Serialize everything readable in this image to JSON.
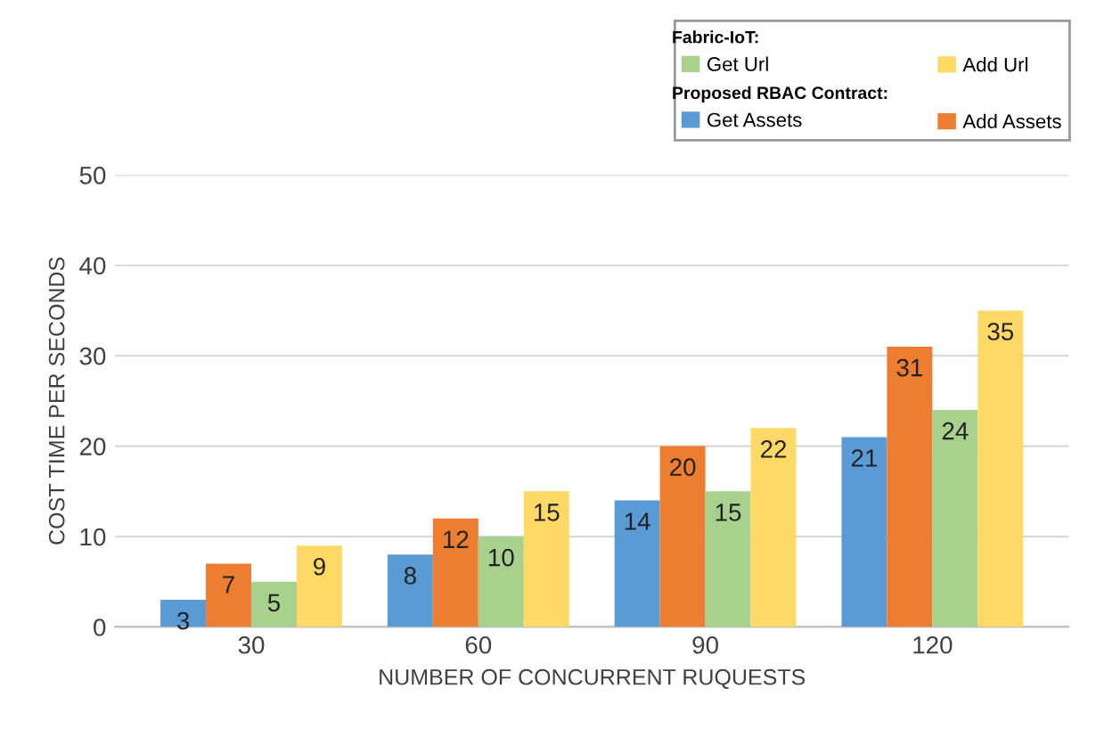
{
  "chart_data": {
    "type": "bar",
    "xlabel": "NUMBER OF CONCURRENT RUQUESTS",
    "ylabel": "COST TIME PER SECONDS",
    "categories": [
      "30",
      "60",
      "90",
      "120"
    ],
    "series": [
      {
        "name": "Get Assets",
        "color": "#5b9bd5",
        "values": [
          3,
          8,
          14,
          21
        ]
      },
      {
        "name": "Add Assets",
        "color": "#ed7d31",
        "values": [
          7,
          12,
          20,
          31
        ]
      },
      {
        "name": "Get Url",
        "color": "#a9d18e",
        "values": [
          5,
          10,
          15,
          24
        ]
      },
      {
        "name": "Add Url",
        "color": "#ffd966",
        "values": [
          9,
          15,
          22,
          35
        ]
      }
    ],
    "annotations": [
      "Fabric-IoT:",
      "Proposed RBAC Contract:"
    ],
    "ylim": [
      0,
      50
    ],
    "yticks": [
      0,
      10,
      20,
      30,
      40,
      50
    ],
    "grid": "y",
    "legend": "top right",
    "data_labels": true
  }
}
